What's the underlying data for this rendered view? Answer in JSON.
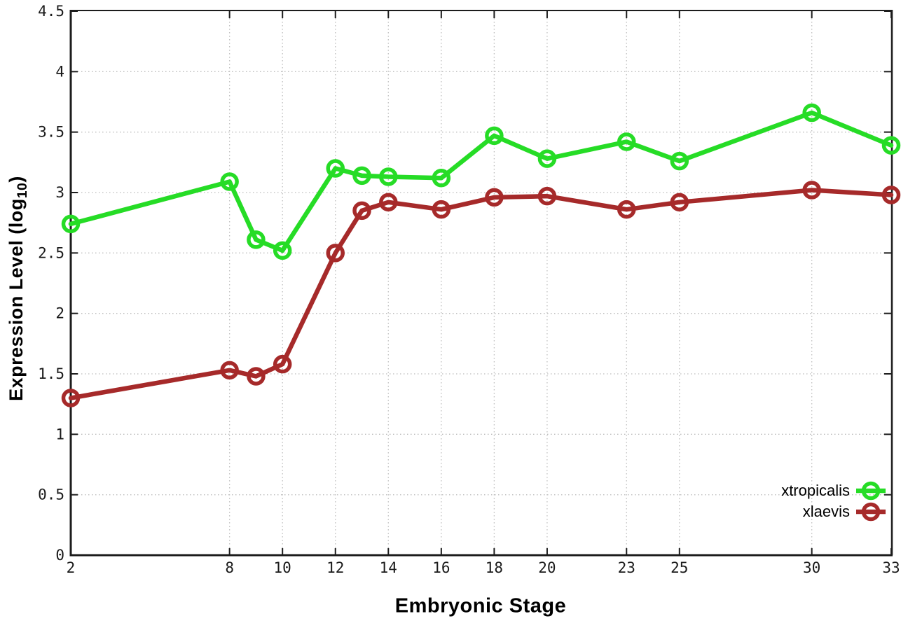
{
  "chart_data": {
    "type": "line",
    "title": "",
    "xlabel": "Embryonic Stage",
    "ylabel": "Expression Level (log10)",
    "ylabel_parts": {
      "prefix": "Expression Level (log",
      "subscript": "10",
      "suffix": ")"
    },
    "x": [
      2,
      8,
      9,
      10,
      12,
      13,
      14,
      16,
      18,
      20,
      23,
      25,
      30,
      33
    ],
    "xlim": [
      2,
      33
    ],
    "ylim": [
      0,
      4.5
    ],
    "x_ticks": [
      2,
      8,
      10,
      12,
      14,
      16,
      18,
      20,
      23,
      25,
      30,
      33
    ],
    "y_ticks": [
      0,
      0.5,
      1,
      1.5,
      2,
      2.5,
      3,
      3.5,
      4,
      4.5
    ],
    "grid": true,
    "legend_position": "bottom-right",
    "series": [
      {
        "name": "xtropicalis",
        "color": "#26DC26",
        "values": [
          2.74,
          3.09,
          2.61,
          2.52,
          3.2,
          3.14,
          3.13,
          3.12,
          3.47,
          3.28,
          3.42,
          3.26,
          3.66,
          3.39
        ]
      },
      {
        "name": "xlaevis",
        "color": "#A62A2A",
        "values": [
          1.3,
          1.53,
          1.48,
          1.58,
          2.5,
          2.85,
          2.92,
          2.86,
          2.96,
          2.97,
          2.86,
          2.92,
          3.02,
          2.98
        ]
      }
    ],
    "colors": {
      "axis": "#1c1c1c",
      "grid": "#bcbcbc",
      "tick_label": "#1a1a1a",
      "background": "#ffffff"
    }
  }
}
